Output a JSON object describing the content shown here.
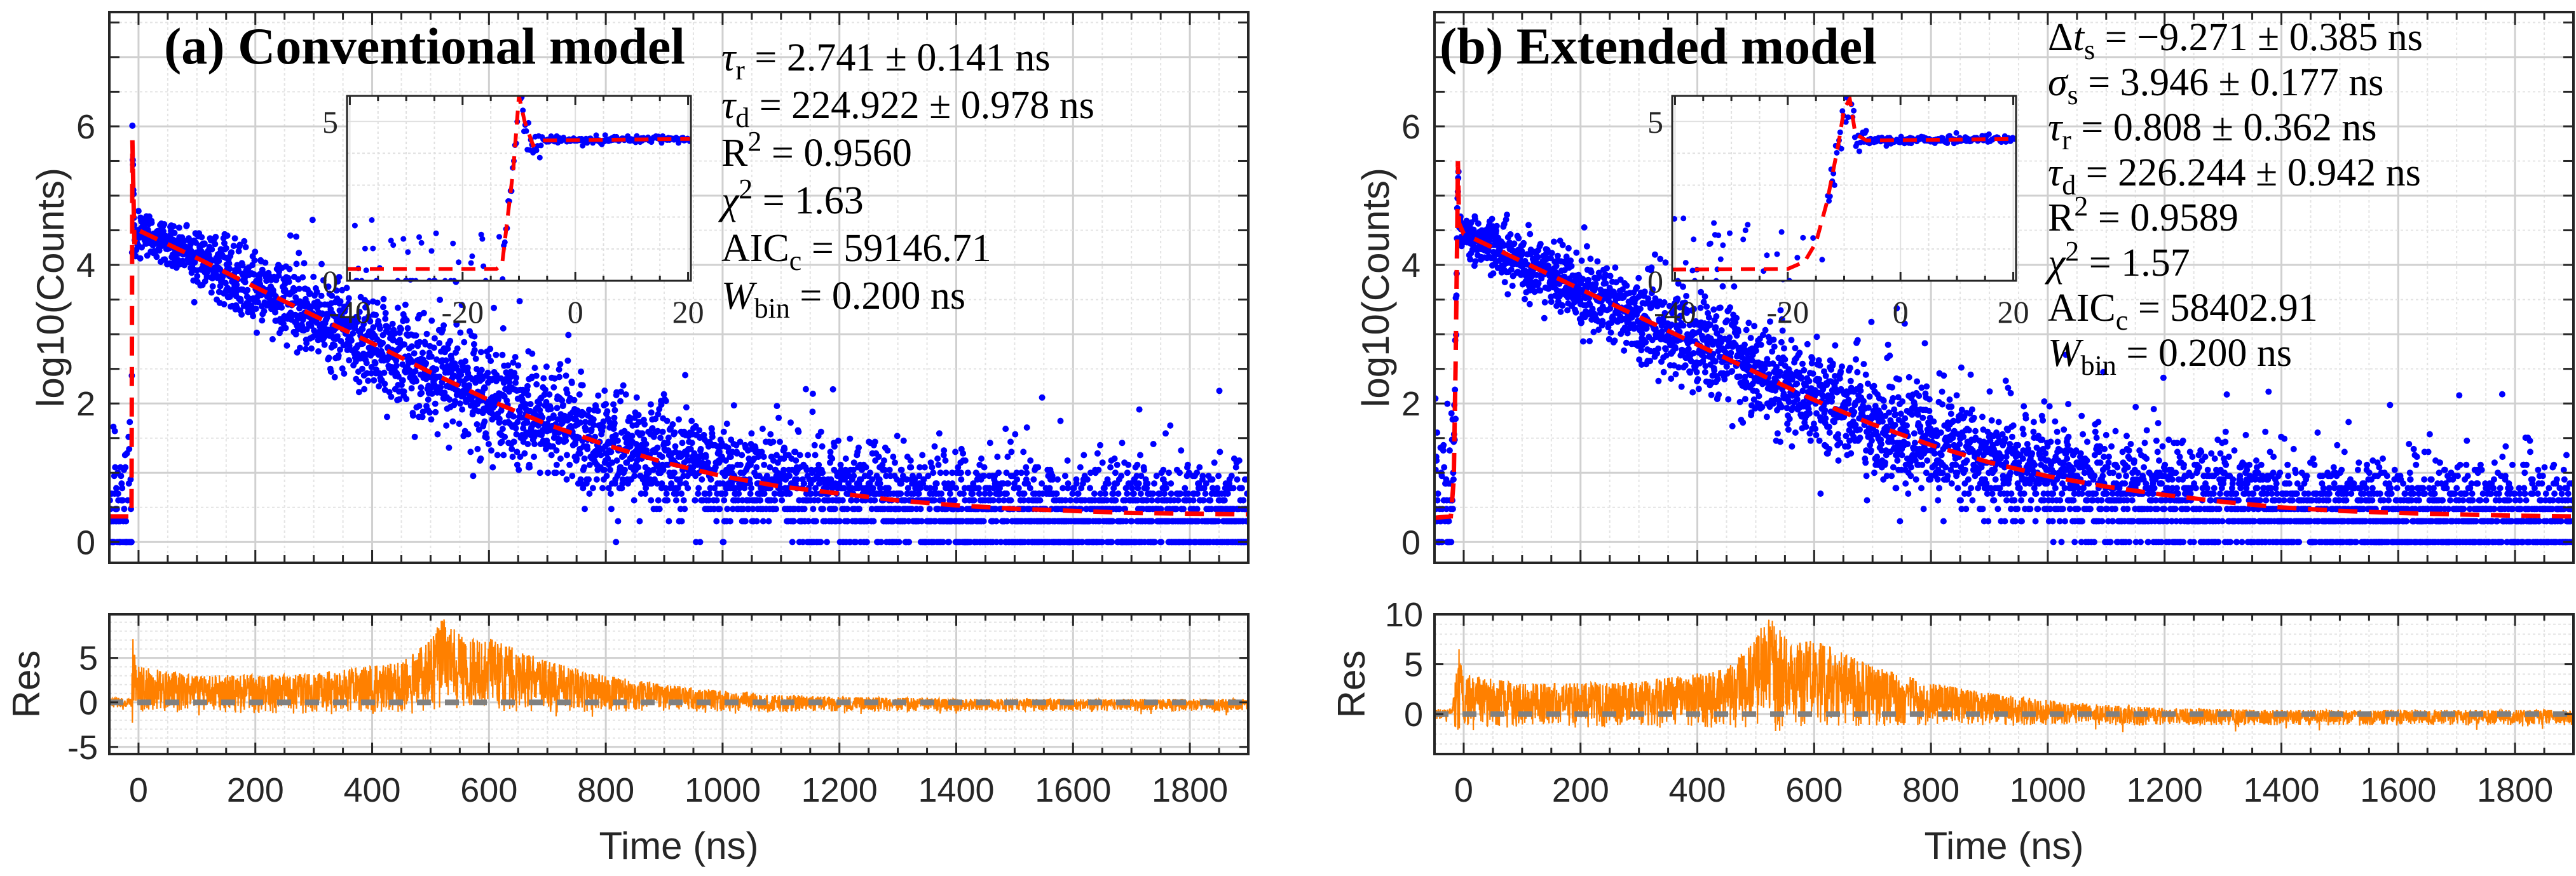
{
  "chart_data": {
    "type": "scatter",
    "figure_layout": "two panels side by side, each with main plot, inset and residual subplot",
    "xlabel": "Time (ns)",
    "ylabel": "log10(Counts)",
    "res_ylabel": "Res",
    "xlim": [
      -50,
      1900
    ],
    "xticks": [
      0,
      200,
      400,
      600,
      800,
      1000,
      1200,
      1400,
      1600,
      1800
    ],
    "ylim": [
      -0.3,
      7.65
    ],
    "yticks": [
      0,
      2,
      4,
      6
    ],
    "grid": true,
    "colors": {
      "data": "#0000ff",
      "fit": "#ff0000",
      "residual": "#ff8000",
      "zero_line": "#808080",
      "axis": "#262626",
      "grid": "#d9d9d9"
    },
    "inset": {
      "xlim": [
        -40.5,
        20.5
      ],
      "xticks": [
        -40,
        -20,
        0,
        20
      ],
      "ylim": [
        0,
        5.8
      ],
      "yticks": [
        0,
        5
      ]
    },
    "panels": [
      {
        "title": "(a) Conventional model",
        "annotations": [
          {
            "pre": "",
            "sym": "τ",
            "sub": "r",
            "sup": "",
            "rest": " = 2.741 ± 0.141 ns"
          },
          {
            "pre": "",
            "sym": "τ",
            "sub": "d",
            "sup": "",
            "rest": " = 224.922 ± 0.978 ns"
          },
          {
            "pre": "",
            "sym": "R",
            "sub": "",
            "sup": "2",
            "rest": " = 0.9560"
          },
          {
            "pre": "",
            "sym": "χ",
            "sub": "",
            "sup": "2",
            "rest": " = 1.63"
          },
          {
            "pre": "",
            "sym": "AIC",
            "sub": "c",
            "sup": "",
            "rest": " = 59146.71"
          },
          {
            "pre": "",
            "sym": "W",
            "sub": "bin",
            "sup": "",
            "rest": " = 0.200 ns"
          }
        ],
        "fit_curve": [
          [
            -50,
            0.37
          ],
          [
            -12,
            0.37
          ],
          [
            -10.5,
            5.8
          ],
          [
            -7,
            4.3
          ],
          [
            0,
            4.5
          ],
          [
            100,
            4.1
          ],
          [
            200,
            3.68
          ],
          [
            300,
            3.27
          ],
          [
            400,
            2.87
          ],
          [
            500,
            2.45
          ],
          [
            600,
            2.05
          ],
          [
            700,
            1.7
          ],
          [
            800,
            1.4
          ],
          [
            900,
            1.15
          ],
          [
            1000,
            0.95
          ],
          [
            1100,
            0.8
          ],
          [
            1200,
            0.7
          ],
          [
            1300,
            0.6
          ],
          [
            1400,
            0.53
          ],
          [
            1500,
            0.48
          ],
          [
            1600,
            0.45
          ],
          [
            1700,
            0.42
          ],
          [
            1800,
            0.41
          ],
          [
            1900,
            0.4
          ]
        ],
        "inset_fit_curve": [
          [
            -40.5,
            0.37
          ],
          [
            -14,
            0.37
          ],
          [
            -13,
            0.5
          ],
          [
            -11,
            3.5
          ],
          [
            -10,
            5.8
          ],
          [
            -9,
            5.0
          ],
          [
            -7.5,
            4.25
          ],
          [
            -6,
            4.4
          ],
          [
            20.5,
            4.45
          ]
        ],
        "residual_ylim": [
          -5.8,
          9.9
        ],
        "residual_yticks": [
          -5,
          0,
          5
        ],
        "residual_envelope": [
          [
            -50,
            0.5
          ],
          [
            -12,
            0.5
          ],
          [
            -10,
            8
          ],
          [
            -5,
            5
          ],
          [
            0,
            4
          ],
          [
            100,
            3
          ],
          [
            300,
            3.2
          ],
          [
            450,
            4.5
          ],
          [
            500,
            7
          ],
          [
            520,
            9.5
          ],
          [
            560,
            7
          ],
          [
            600,
            7.2
          ],
          [
            700,
            4.6
          ],
          [
            800,
            3.0
          ],
          [
            900,
            2.0
          ],
          [
            1000,
            1.3
          ],
          [
            1100,
            0.9
          ],
          [
            1200,
            0.6
          ],
          [
            1400,
            0.4
          ],
          [
            1900,
            0.4
          ]
        ],
        "residual_lower": [
          [
            -50,
            -1
          ],
          [
            -12,
            -1
          ],
          [
            -10,
            -5.8
          ],
          [
            -5,
            -2
          ],
          [
            0,
            -2
          ],
          [
            400,
            -2.2
          ],
          [
            800,
            -1.8
          ],
          [
            1900,
            -1.6
          ]
        ]
      },
      {
        "title": "(b) Extended model",
        "annotations": [
          {
            "pre": "Δ",
            "sym": "t",
            "sub": "s",
            "sup": "",
            "rest": " = −9.271 ± 0.385 ns"
          },
          {
            "pre": "",
            "sym": "σ",
            "sub": "s",
            "sup": "",
            "rest": " = 3.946 ± 0.177 ns"
          },
          {
            "pre": "",
            "sym": "τ",
            "sub": "r",
            "sup": "",
            "rest": " = 0.808 ± 0.362 ns"
          },
          {
            "pre": "",
            "sym": "τ",
            "sub": "d",
            "sup": "",
            "rest": " = 226.244 ± 0.942 ns"
          },
          {
            "pre": "",
            "sym": "R",
            "sub": "",
            "sup": "2",
            "rest": " = 0.9589"
          },
          {
            "pre": "",
            "sym": "χ",
            "sub": "",
            "sup": "2",
            "rest": " = 1.57"
          },
          {
            "pre": "",
            "sym": "AIC",
            "sub": "c",
            "sup": "",
            "rest": " = 58402.91"
          },
          {
            "pre": "",
            "sym": "W",
            "sub": "bin",
            "sup": "",
            "rest": " = 0.200 ns"
          }
        ],
        "fit_curve": [
          [
            -50,
            0.35
          ],
          [
            -22,
            0.37
          ],
          [
            -17,
            0.9
          ],
          [
            -14,
            2.5
          ],
          [
            -11,
            4.5
          ],
          [
            -10,
            5.5
          ],
          [
            -8,
            4.6
          ],
          [
            0,
            4.45
          ],
          [
            100,
            4.05
          ],
          [
            200,
            3.65
          ],
          [
            300,
            3.25
          ],
          [
            400,
            2.85
          ],
          [
            500,
            2.45
          ],
          [
            600,
            2.05
          ],
          [
            700,
            1.7
          ],
          [
            800,
            1.4
          ],
          [
            900,
            1.15
          ],
          [
            1000,
            0.95
          ],
          [
            1100,
            0.8
          ],
          [
            1200,
            0.68
          ],
          [
            1300,
            0.58
          ],
          [
            1400,
            0.5
          ],
          [
            1500,
            0.45
          ],
          [
            1600,
            0.42
          ],
          [
            1700,
            0.4
          ],
          [
            1800,
            0.38
          ],
          [
            1900,
            0.37
          ]
        ],
        "inset_fit_curve": [
          [
            -40.5,
            0.35
          ],
          [
            -20,
            0.37
          ],
          [
            -17,
            0.6
          ],
          [
            -15,
            1.2
          ],
          [
            -13,
            2.5
          ],
          [
            -11,
            4.3
          ],
          [
            -10,
            5.4
          ],
          [
            -9,
            5.7
          ],
          [
            -8,
            4.6
          ],
          [
            -6,
            4.4
          ],
          [
            20.5,
            4.45
          ]
        ],
        "residual_ylim": [
          -4,
          10
        ],
        "residual_yticks": [
          0,
          5,
          10
        ],
        "residual_envelope": [
          [
            -50,
            0.5
          ],
          [
            -20,
            0.5
          ],
          [
            -10,
            7.5
          ],
          [
            -5,
            5
          ],
          [
            0,
            4
          ],
          [
            100,
            3
          ],
          [
            300,
            3.2
          ],
          [
            450,
            4.5
          ],
          [
            500,
            7.5
          ],
          [
            520,
            10
          ],
          [
            560,
            7
          ],
          [
            600,
            7.4
          ],
          [
            700,
            4.8
          ],
          [
            800,
            3.1
          ],
          [
            900,
            2.1
          ],
          [
            1000,
            1.4
          ],
          [
            1100,
            0.9
          ],
          [
            1200,
            0.6
          ],
          [
            1400,
            0.4
          ],
          [
            1900,
            0.4
          ]
        ],
        "residual_lower": [
          [
            -50,
            -1
          ],
          [
            -20,
            -1
          ],
          [
            -10,
            -4
          ],
          [
            -5,
            -2.2
          ],
          [
            0,
            -2.2
          ],
          [
            400,
            -2.4
          ],
          [
            800,
            -2
          ],
          [
            1900,
            -1.8
          ]
        ]
      }
    ]
  }
}
